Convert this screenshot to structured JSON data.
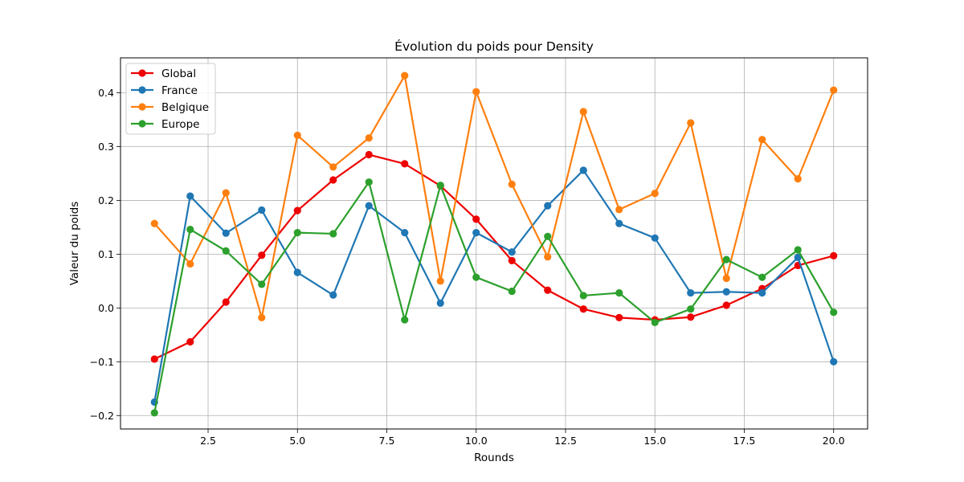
{
  "chart_data": {
    "type": "line",
    "title": "Évolution du poids pour Density",
    "xlabel": "Rounds",
    "ylabel": "Valeur du poids",
    "xlim": [
      0.05,
      20.95
    ],
    "ylim": [
      -0.225,
      0.465
    ],
    "xticks": [
      2.5,
      5.0,
      7.5,
      10.0,
      12.5,
      15.0,
      17.5,
      20.0
    ],
    "xtick_labels": [
      "2.5",
      "5.0",
      "7.5",
      "10.0",
      "12.5",
      "15.0",
      "17.5",
      "20.0"
    ],
    "yticks": [
      -0.2,
      -0.1,
      0.0,
      0.1,
      0.2,
      0.3,
      0.4
    ],
    "ytick_labels": [
      "−0.2",
      "−0.1",
      "0.0",
      "0.1",
      "0.2",
      "0.3",
      "0.4"
    ],
    "grid": true,
    "legend_position": "top-left",
    "x": [
      1,
      2,
      3,
      4,
      5,
      6,
      7,
      8,
      9,
      10,
      11,
      12,
      13,
      14,
      15,
      16,
      17,
      18,
      19,
      20
    ],
    "series": [
      {
        "name": "Global",
        "color": "#ee0000",
        "values": [
          -0.095,
          -0.063,
          0.011,
          0.098,
          0.181,
          0.238,
          0.285,
          0.268,
          0.227,
          0.165,
          0.088,
          0.033,
          -0.002,
          -0.018,
          -0.022,
          -0.017,
          0.005,
          0.036,
          0.079,
          0.097
        ]
      },
      {
        "name": "France",
        "color": "#1f77b4",
        "values": [
          -0.175,
          0.208,
          0.139,
          0.182,
          0.066,
          0.024,
          0.19,
          0.14,
          0.009,
          0.14,
          0.104,
          0.19,
          0.256,
          0.157,
          0.13,
          0.028,
          0.03,
          0.028,
          0.094,
          -0.1
        ]
      },
      {
        "name": "Belgique",
        "color": "#ff7f0e",
        "values": [
          0.157,
          0.082,
          0.214,
          -0.018,
          0.321,
          0.262,
          0.316,
          0.432,
          0.05,
          0.402,
          0.23,
          0.095,
          0.365,
          0.183,
          0.213,
          0.344,
          0.055,
          0.313,
          0.24,
          0.405
        ]
      },
      {
        "name": "Europe",
        "color": "#2ca02c",
        "values": [
          -0.195,
          0.146,
          0.106,
          0.044,
          0.14,
          0.138,
          0.234,
          -0.022,
          0.228,
          0.057,
          0.031,
          0.133,
          0.023,
          0.028,
          -0.027,
          -0.002,
          0.09,
          0.057,
          0.108,
          -0.008
        ]
      }
    ]
  }
}
